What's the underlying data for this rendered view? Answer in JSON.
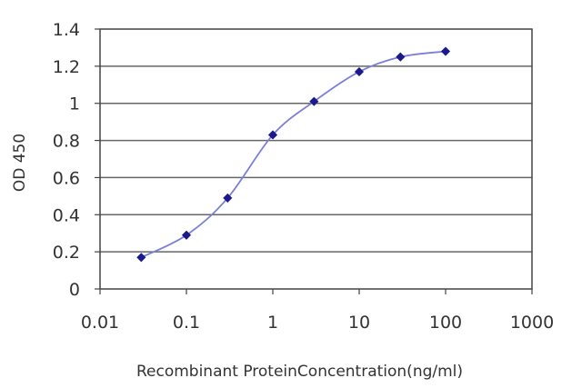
{
  "chart_data": {
    "type": "line",
    "xscale": "log",
    "xlim": [
      0.01,
      1000
    ],
    "ylim": [
      0,
      1.4
    ],
    "x_ticks": [
      0.01,
      0.1,
      1,
      10,
      100,
      1000
    ],
    "x_tick_labels": [
      "0.01",
      "0.1",
      "1",
      "10",
      "100",
      "1000"
    ],
    "y_ticks": [
      0,
      0.2,
      0.4,
      0.6,
      0.8,
      1,
      1.2,
      1.4
    ],
    "y_tick_labels": [
      "0",
      "0.2",
      "0.4",
      "0.6",
      "0.8",
      "1",
      "1.2",
      "1.4"
    ],
    "xlabel": "Recombinant ProteinConcentration(ng/ml)",
    "ylabel": "OD 450",
    "grid": "horizontal",
    "series": [
      {
        "x": [
          0.03,
          0.1,
          0.3,
          1,
          3,
          10,
          30,
          100
        ],
        "y": [
          0.17,
          0.29,
          0.49,
          0.83,
          1.01,
          1.17,
          1.25,
          1.28
        ]
      }
    ],
    "colors": {
      "line": "#7b7fd6",
      "marker": "#1a1a8c",
      "grid": "#666666",
      "frame": "#444444"
    }
  }
}
